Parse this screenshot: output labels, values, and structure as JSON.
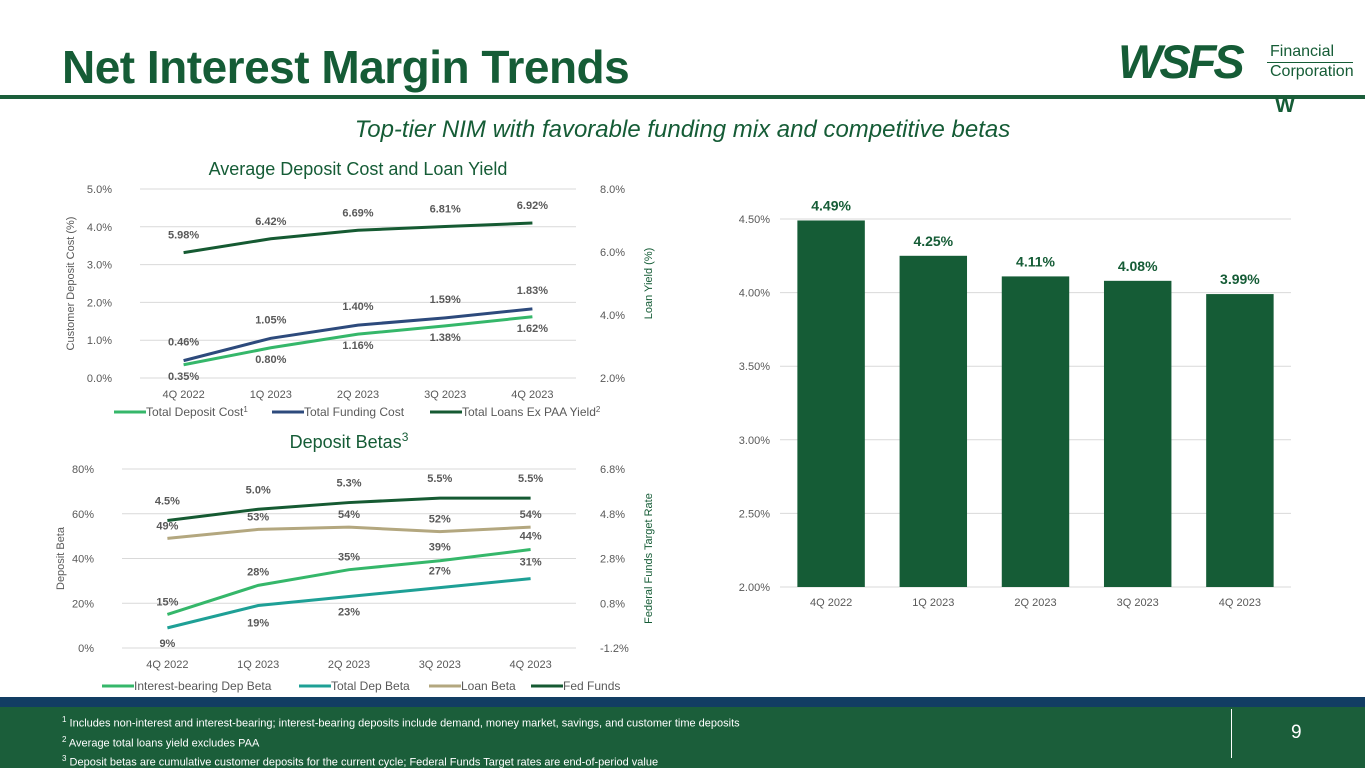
{
  "title": "Net Interest Margin Trends",
  "subtitle": "Top-tier NIM with favorable funding mix and competitive betas",
  "logo": {
    "main": "WSFS",
    "line1": "Financial",
    "line2": "Corporation",
    "mark": "W"
  },
  "colors": {
    "dark_green": "#1b5e3a",
    "bright_green": "#35b76a",
    "navy": "#2d4a7c",
    "teal": "#1ea096",
    "tan": "#b3a77f",
    "darkest_green": "#155a32",
    "bar": "#155c36"
  },
  "chart_data": [
    {
      "id": "deposit_cost",
      "type": "line",
      "title": "Average Deposit Cost and Loan Yield",
      "categories": [
        "4Q 2022",
        "1Q 2023",
        "2Q 2023",
        "3Q 2023",
        "4Q 2023"
      ],
      "ylabel": "Customer Deposit Cost (%)",
      "y2label": "Loan Yield (%)",
      "ylim": [
        0,
        5
      ],
      "y2lim": [
        2,
        8
      ],
      "yticks": [
        "0.0%",
        "1.0%",
        "2.0%",
        "3.0%",
        "4.0%",
        "5.0%"
      ],
      "y2ticks": [
        "2.0%",
        "4.0%",
        "6.0%",
        "8.0%"
      ],
      "series": [
        {
          "name": "Total Deposit Cost",
          "sup": "1",
          "axis": "left",
          "color": "#35b76a",
          "values": [
            0.35,
            0.8,
            1.16,
            1.38,
            1.62
          ],
          "labels": [
            "0.35%",
            "0.80%",
            "1.16%",
            "1.38%",
            "1.62%"
          ]
        },
        {
          "name": "Total Funding Cost",
          "sup": "",
          "axis": "left",
          "color": "#2d4a7c",
          "values": [
            0.46,
            1.05,
            1.4,
            1.59,
            1.83
          ],
          "labels": [
            "0.46%",
            "1.05%",
            "1.40%",
            "1.59%",
            "1.83%"
          ]
        },
        {
          "name": "Total Loans Ex PAA Yield",
          "sup": "2",
          "axis": "right",
          "color": "#155a32",
          "values": [
            5.98,
            6.42,
            6.69,
            6.81,
            6.92
          ],
          "labels": [
            "5.98%",
            "6.42%",
            "6.69%",
            "6.81%",
            "6.92%"
          ]
        }
      ]
    },
    {
      "id": "betas",
      "type": "line",
      "title": "Deposit Betas",
      "title_sup": "3",
      "categories": [
        "4Q 2022",
        "1Q 2023",
        "2Q 2023",
        "3Q 2023",
        "4Q 2023"
      ],
      "ylabel": "Deposit Beta",
      "y2label": "Federal Funds Target Rate",
      "ylim": [
        0,
        80
      ],
      "y2lim": [
        -1.2,
        6.8
      ],
      "yticks": [
        "0%",
        "20%",
        "40%",
        "60%",
        "80%"
      ],
      "y2ticks": [
        "-1.2%",
        "0.8%",
        "2.8%",
        "4.8%",
        "6.8%"
      ],
      "series": [
        {
          "name": "Interest-bearing Dep Beta",
          "axis": "left",
          "color": "#35b76a",
          "values": [
            15,
            28,
            35,
            39,
            44
          ],
          "labels": [
            "15%",
            "28%",
            "35%",
            "39%",
            "44%"
          ]
        },
        {
          "name": "Total Dep Beta",
          "axis": "left",
          "color": "#1ea096",
          "values": [
            9,
            19,
            23,
            27,
            31
          ],
          "labels": [
            "9%",
            "19%",
            "23%",
            "27%",
            "31%"
          ]
        },
        {
          "name": "Loan Beta",
          "axis": "left",
          "color": "#b3a77f",
          "values": [
            49,
            53,
            54,
            52,
            54
          ],
          "labels": [
            "49%",
            "53%",
            "54%",
            "52%",
            "54%"
          ]
        },
        {
          "name": "Fed Funds",
          "axis": "right",
          "color": "#155a32",
          "values": [
            4.5,
            5.0,
            5.3,
            5.5,
            5.5
          ],
          "labels": [
            "4.5%",
            "5.0%",
            "5.3%",
            "5.5%",
            "5.5%"
          ]
        }
      ]
    },
    {
      "id": "nim",
      "type": "bar",
      "title": "",
      "categories": [
        "4Q 2022",
        "1Q 2023",
        "2Q 2023",
        "3Q 2023",
        "4Q 2023"
      ],
      "values": [
        4.49,
        4.25,
        4.11,
        4.08,
        3.99
      ],
      "labels": [
        "4.49%",
        "4.25%",
        "4.11%",
        "4.08%",
        "3.99%"
      ],
      "ylim": [
        2.0,
        4.5
      ],
      "yticks": [
        "2.00%",
        "2.50%",
        "3.00%",
        "3.50%",
        "4.00%",
        "4.50%"
      ]
    }
  ],
  "footnotes": [
    {
      "num": "1",
      "text": "Includes non-interest and interest-bearing; interest-bearing deposits include demand, money market, savings, and customer time deposits"
    },
    {
      "num": "2",
      "text": "Average total loans yield excludes PAA"
    },
    {
      "num": "3",
      "text": "Deposit betas are cumulative customer deposits for the current cycle; Federal Funds Target rates are end-of-period value"
    }
  ],
  "page_number": "9"
}
